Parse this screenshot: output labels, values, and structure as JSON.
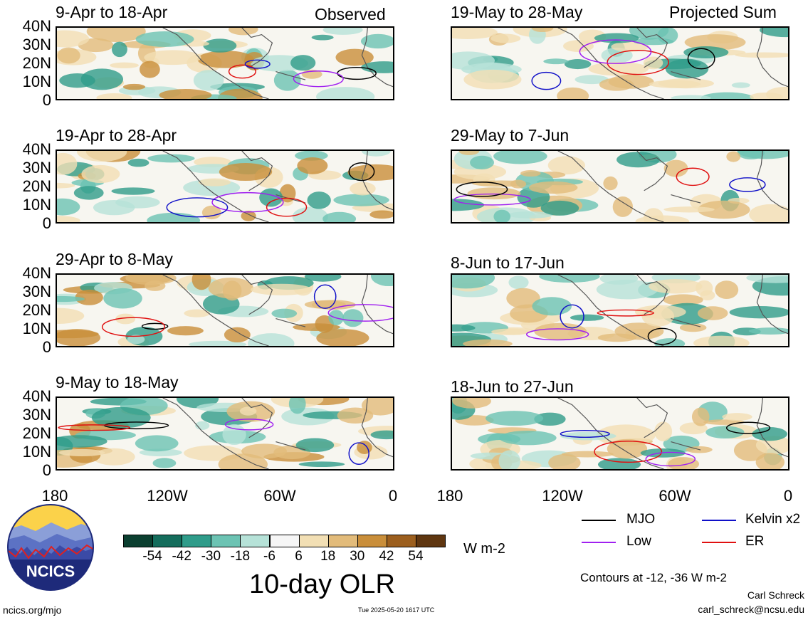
{
  "headers": {
    "observed": "Observed",
    "projected": "Projected Sum"
  },
  "panels_left": [
    {
      "title": "9-Apr to 18-Apr"
    },
    {
      "title": "19-Apr to 28-Apr"
    },
    {
      "title": "29-Apr to 8-May"
    },
    {
      "title": "9-May to 18-May"
    }
  ],
  "panels_right": [
    {
      "title": "19-May to 28-May"
    },
    {
      "title": "29-May to 7-Jun"
    },
    {
      "title": "8-Jun to 17-Jun"
    },
    {
      "title": "18-Jun to 27-Jun"
    }
  ],
  "y_ticks": [
    "40N",
    "30N",
    "20N",
    "10N",
    "0"
  ],
  "x_ticks": [
    "180",
    "120W",
    "60W",
    "0"
  ],
  "colorbar": {
    "labels": [
      "-54",
      "-42",
      "-30",
      "-18",
      "-6",
      "6",
      "18",
      "30",
      "42",
      "54"
    ],
    "colors": [
      "#0b3f30",
      "#146d5c",
      "#2f9c8a",
      "#6cc3b3",
      "#b6e2d8",
      "#f6f6f6",
      "#f2dfb4",
      "#e2bb7a",
      "#c98e3a",
      "#9c5f1e",
      "#5f3610"
    ],
    "units": "W m-2"
  },
  "main_title": "10-day OLR",
  "legend": {
    "mjo": {
      "label": "MJO",
      "color": "#000000"
    },
    "kelvin": {
      "label": "Kelvin x2",
      "color": "#1010c8"
    },
    "low": {
      "label": "Low",
      "color": "#a020f0"
    },
    "er": {
      "label": "ER",
      "color": "#e01010"
    }
  },
  "contours_note": "Contours at -12, -36 W m-2",
  "credits": {
    "author": "Carl Schreck",
    "email": "carl_schreck@ncsu.edu",
    "url": "ncics.org/mjo",
    "timestamp": "Tue 2025-05-20 1617 UTC"
  },
  "logo": {
    "text": "NCICS"
  }
}
